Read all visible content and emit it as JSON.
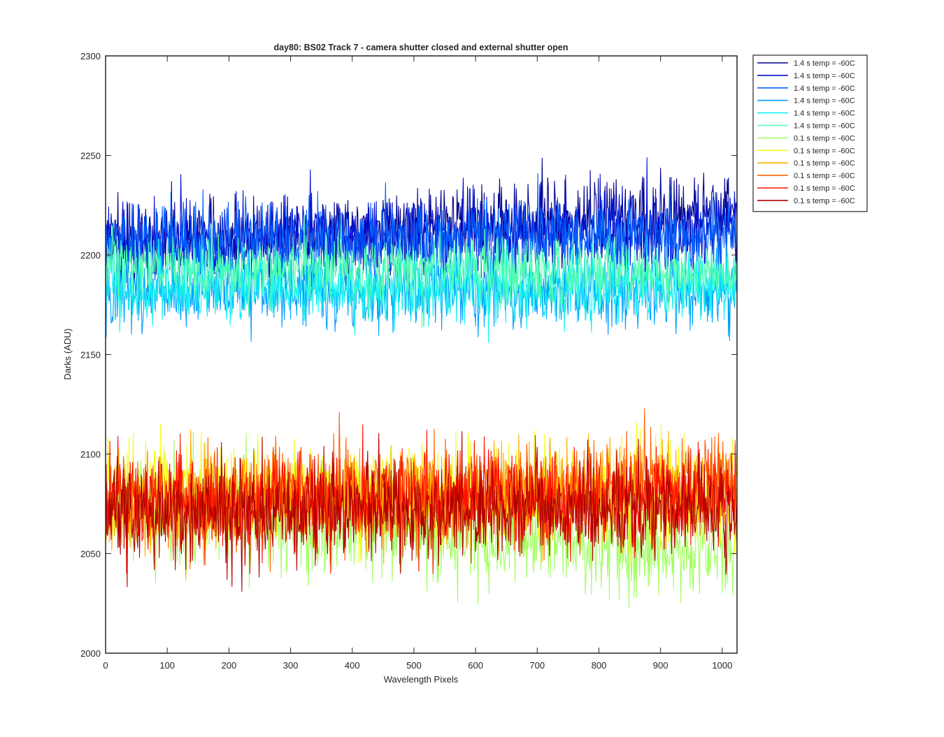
{
  "chart_data": {
    "type": "line",
    "title": "day80: BS02  Track 7 - camera shutter closed and external shutter open",
    "xlabel": "Wavelength Pixels",
    "ylabel": "Darks (ADU)",
    "xlim": [
      0,
      1024
    ],
    "ylim": [
      2000,
      2300
    ],
    "xticks": [
      0,
      100,
      200,
      300,
      400,
      500,
      600,
      700,
      800,
      900,
      1000
    ],
    "yticks": [
      2000,
      2050,
      2100,
      2150,
      2200,
      2250,
      2300
    ],
    "grid": false,
    "legend_position": "outside-top-right",
    "x_start": 0,
    "x_end": 1024,
    "series": [
      {
        "name": "1.4 s temp = -60C",
        "color": "#00008F",
        "mean_start": 2205,
        "mean_end": 2222,
        "noise_sd": 10,
        "min": 2170,
        "max": 2260
      },
      {
        "name": "1.4 s temp = -60C",
        "color": "#0010D0",
        "mean_start": 2208,
        "mean_end": 2213,
        "noise_sd": 10,
        "min": 2165,
        "max": 2252
      },
      {
        "name": "1.4 s temp = -60C",
        "color": "#0060FF",
        "mean_start": 2205,
        "mean_end": 2210,
        "noise_sd": 10,
        "min": 2160,
        "max": 2246
      },
      {
        "name": "1.4 s temp = -60C",
        "color": "#00A0FF",
        "mean_start": 2183,
        "mean_end": 2182,
        "noise_sd": 9,
        "min": 2137,
        "max": 2226
      },
      {
        "name": "1.4 s temp = -60C",
        "color": "#10F0F0",
        "mean_start": 2183,
        "mean_end": 2185,
        "noise_sd": 9,
        "min": 2150,
        "max": 2222
      },
      {
        "name": "1.4 s temp = -60C",
        "color": "#50FFB0",
        "mean_start": 2194,
        "mean_end": 2191,
        "noise_sd": 8,
        "min": 2160,
        "max": 2225
      },
      {
        "name": "0.1 s temp = -60C",
        "color": "#A0FF60",
        "mean_start": 2072,
        "mean_end": 2050,
        "noise_sd": 12,
        "min": 2014,
        "max": 2125
      },
      {
        "name": "0.1 s temp = -60C",
        "color": "#F0FF10",
        "mean_start": 2082,
        "mean_end": 2076,
        "noise_sd": 13,
        "min": 2030,
        "max": 2148
      },
      {
        "name": "0.1 s temp = -60C",
        "color": "#FFB000",
        "mean_start": 2073,
        "mean_end": 2085,
        "noise_sd": 12,
        "min": 2034,
        "max": 2151
      },
      {
        "name": "0.1 s temp = -60C",
        "color": "#FF6000",
        "mean_start": 2075,
        "mean_end": 2083,
        "noise_sd": 12,
        "min": 2040,
        "max": 2150
      },
      {
        "name": "0.1 s temp = -60C",
        "color": "#FF1000",
        "mean_start": 2077,
        "mean_end": 2078,
        "noise_sd": 12,
        "min": 2040,
        "max": 2137
      },
      {
        "name": "0.1 s temp = -60C",
        "color": "#B00000",
        "mean_start": 2070,
        "mean_end": 2072,
        "noise_sd": 12,
        "min": 2031,
        "max": 2130
      }
    ]
  }
}
